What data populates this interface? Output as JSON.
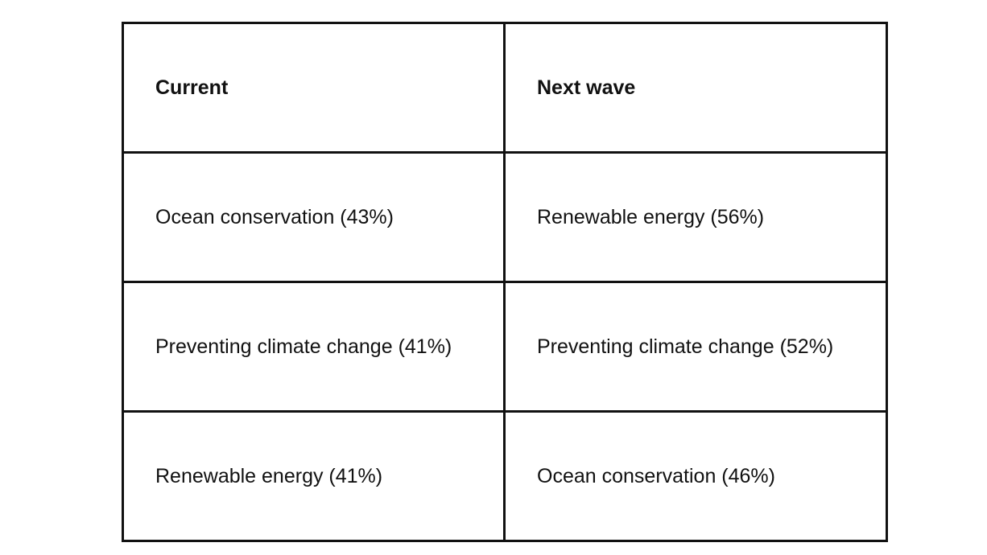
{
  "table": {
    "headers": [
      "Current",
      "Next wave"
    ],
    "rows": [
      [
        "Ocean conservation (43%)",
        "Renewable energy (56%)"
      ],
      [
        "Preventing climate change (41%)",
        "Preventing climate change (52%)"
      ],
      [
        "Renewable energy (41%)",
        "Ocean conservation (46%)"
      ]
    ]
  }
}
